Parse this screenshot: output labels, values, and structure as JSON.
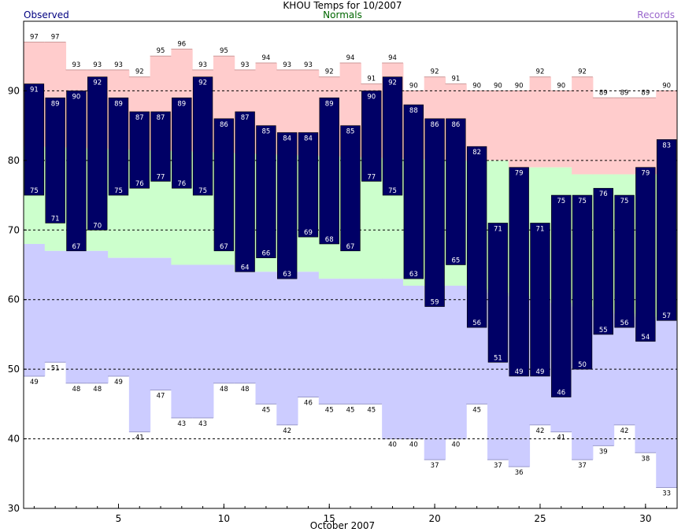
{
  "chart_data": {
    "type": "bar",
    "title": "KHOU Temps for 10/2007",
    "xlabel": "October 2007",
    "ylabel": "",
    "legend": {
      "observed": "Observed",
      "normals": "Normals",
      "records": "Records",
      "placement": "top"
    },
    "xlim": [
      1,
      31
    ],
    "ylim": [
      30,
      100
    ],
    "x_ticks": [
      5,
      10,
      15,
      20,
      25,
      30
    ],
    "y_ticks": [
      30,
      40,
      50,
      60,
      70,
      80,
      90
    ],
    "grid_lines": [
      40,
      50,
      60,
      70,
      80,
      90
    ],
    "days": [
      1,
      2,
      3,
      4,
      5,
      6,
      7,
      8,
      9,
      10,
      11,
      12,
      13,
      14,
      15,
      16,
      17,
      18,
      19,
      20,
      21,
      22,
      23,
      24,
      25,
      26,
      27,
      28,
      29,
      30,
      31
    ],
    "series": [
      {
        "name": "Observed",
        "key": "observed_high",
        "values": [
          91,
          89,
          90,
          92,
          89,
          87,
          87,
          89,
          92,
          86,
          87,
          85,
          84,
          84,
          89,
          85,
          90,
          92,
          88,
          86,
          86,
          82,
          71,
          79,
          71,
          75,
          75,
          76,
          75,
          79,
          83
        ]
      },
      {
        "name": "Observed",
        "key": "observed_low",
        "values": [
          75,
          71,
          67,
          70,
          75,
          76,
          77,
          76,
          75,
          67,
          64,
          66,
          63,
          69,
          68,
          67,
          77,
          75,
          63,
          59,
          65,
          56,
          51,
          49,
          49,
          46,
          50,
          55,
          56,
          54,
          57
        ]
      },
      {
        "name": "Normals",
        "key": "normal_high",
        "values": [
          null,
          null,
          null,
          null,
          null,
          null,
          null,
          null,
          null,
          null,
          null,
          null,
          null,
          null,
          null,
          null,
          null,
          null,
          null,
          null,
          null,
          null,
          80,
          79,
          79,
          79,
          78,
          78,
          78,
          null,
          null
        ]
      },
      {
        "name": "Normals",
        "key": "normal_low",
        "values": [
          68,
          67,
          67,
          67,
          66,
          66,
          66,
          65,
          65,
          65,
          64,
          64,
          64,
          64,
          63,
          63,
          63,
          63,
          62,
          62,
          62,
          null,
          null,
          null,
          null,
          null,
          null,
          null,
          null,
          null,
          null
        ]
      },
      {
        "name": "Records",
        "key": "record_high",
        "values": [
          97,
          97,
          93,
          93,
          93,
          92,
          95,
          96,
          93,
          95,
          93,
          94,
          93,
          93,
          92,
          94,
          91,
          94,
          90,
          92,
          91,
          90,
          90,
          90,
          92,
          90,
          92,
          89,
          89,
          89,
          90
        ]
      },
      {
        "name": "Records",
        "key": "record_low",
        "values": [
          49,
          51,
          48,
          48,
          49,
          41,
          47,
          43,
          43,
          48,
          48,
          45,
          42,
          46,
          45,
          45,
          45,
          40,
          40,
          37,
          40,
          45,
          37,
          36,
          42,
          41,
          37,
          39,
          42,
          38,
          33
        ]
      }
    ],
    "colors": {
      "observed": "#000066",
      "observed_text": "#000080",
      "normals_band": "#ccffcc",
      "normals_text": "#006600",
      "record_high_band": "#ffcccc",
      "record_low_band": "#ccccff",
      "records_text": "#9966cc",
      "grid": "#000000"
    }
  }
}
